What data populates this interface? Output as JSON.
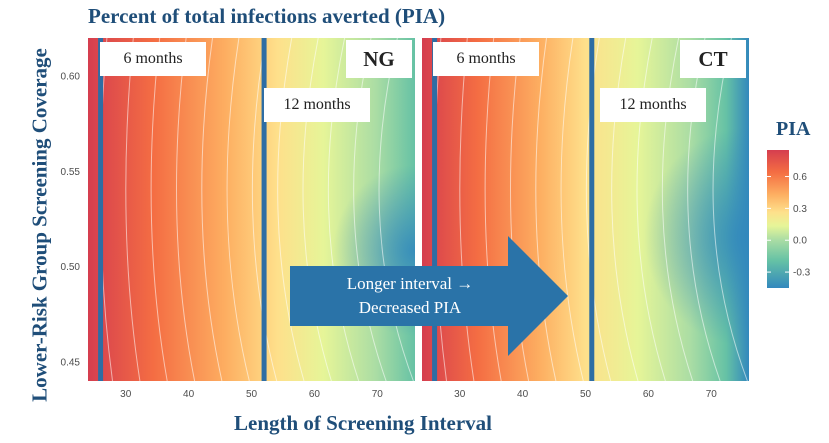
{
  "title": "Percent of total infections averted (PIA)",
  "xlabel": "Length of Screening Interval",
  "ylabel": "Lower-Risk Group Screening Coverage",
  "colors": {
    "title": "#1f4e79",
    "interval_line": "#2e6da4",
    "arrow": "#2a73a8"
  },
  "chart_data": [
    {
      "type": "heatmap",
      "panel": "NG",
      "x_range": [
        24,
        76
      ],
      "y_range": [
        0.44,
        0.62
      ],
      "x_ticks": [
        30,
        40,
        50,
        60,
        70
      ],
      "y_ticks": [
        "0.60",
        "0.55",
        "0.50",
        "0.45"
      ],
      "colorscale": "Spectral (reversed)",
      "contours": true,
      "reference_lines": [
        {
          "x": 26,
          "label": "6 months"
        },
        {
          "x": 52,
          "label": "12 months"
        }
      ],
      "pia_range": [
        -0.45,
        0.85
      ],
      "approx_values": [
        {
          "x": 25,
          "y": 0.6,
          "pia": 0.72
        },
        {
          "x": 40,
          "y": 0.6,
          "pia": 0.42
        },
        {
          "x": 52,
          "y": 0.6,
          "pia": 0.12
        },
        {
          "x": 75,
          "y": 0.6,
          "pia": -0.05
        },
        {
          "x": 25,
          "y": 0.45,
          "pia": 0.6
        },
        {
          "x": 52,
          "y": 0.45,
          "pia": 0.08
        },
        {
          "x": 75,
          "y": 0.5,
          "pia": -0.2
        }
      ]
    },
    {
      "type": "heatmap",
      "panel": "CT",
      "x_range": [
        24,
        76
      ],
      "y_range": [
        0.44,
        0.62
      ],
      "x_ticks": [
        30,
        40,
        50,
        60,
        70
      ],
      "colorscale": "Spectral (reversed)",
      "contours": true,
      "reference_lines": [
        {
          "x": 26,
          "label": "6 months"
        },
        {
          "x": 51,
          "label": "12 months"
        }
      ],
      "pia_range": [
        -0.45,
        0.85
      ],
      "approx_values": [
        {
          "x": 25,
          "y": 0.6,
          "pia": 0.78
        },
        {
          "x": 40,
          "y": 0.6,
          "pia": 0.35
        },
        {
          "x": 52,
          "y": 0.6,
          "pia": 0.05
        },
        {
          "x": 75,
          "y": 0.6,
          "pia": -0.15
        },
        {
          "x": 25,
          "y": 0.45,
          "pia": 0.65
        },
        {
          "x": 52,
          "y": 0.45,
          "pia": 0.02
        },
        {
          "x": 75,
          "y": 0.5,
          "pia": -0.4
        }
      ]
    }
  ],
  "legend": {
    "title": "PIA",
    "ticks": [
      "0.6",
      "0.3",
      "0.0",
      "-0.3"
    ],
    "tick_values": [
      0.6,
      0.3,
      0.0,
      -0.3
    ],
    "range": [
      -0.45,
      0.85
    ]
  },
  "arrow_text": [
    "Longer interval →",
    "Decreased PIA"
  ]
}
